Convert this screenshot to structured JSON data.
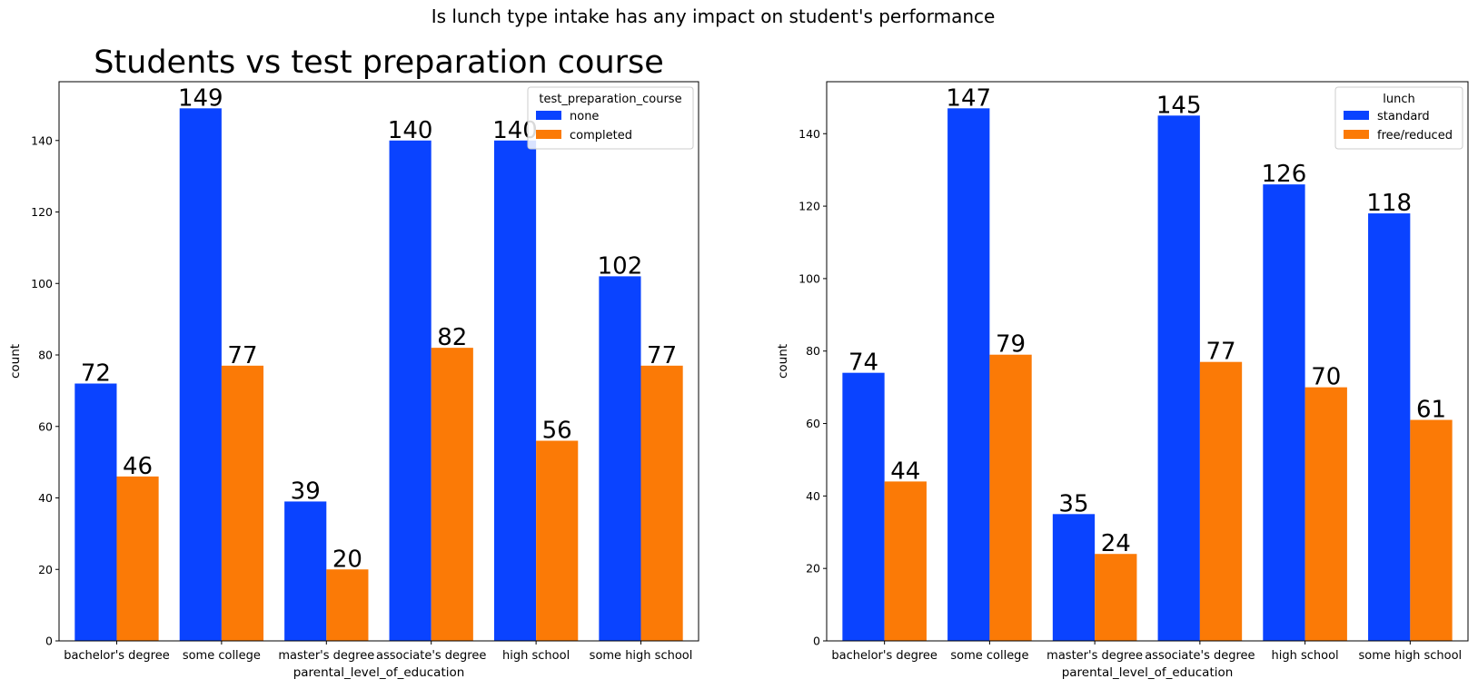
{
  "suptitle": "Is lunch type intake has any impact on student's performance",
  "colors": {
    "blue": "#0a43ff",
    "orange": "#fb7a06"
  },
  "chart_data": [
    {
      "type": "bar",
      "title": "Students vs test preparation course",
      "xlabel": "parental_level_of_education",
      "ylabel": "count",
      "categories": [
        "bachelor's degree",
        "some college",
        "master's degree",
        "associate's degree",
        "high school",
        "some high school"
      ],
      "ylim": [
        0,
        156.45
      ],
      "yticks": [
        0,
        20,
        40,
        60,
        80,
        100,
        120,
        140
      ],
      "legend": {
        "title": "test_preparation_course",
        "placement": "top-right"
      },
      "series": [
        {
          "name": "none",
          "color": "#0a43ff",
          "values": [
            72,
            149,
            39,
            140,
            140,
            102
          ]
        },
        {
          "name": "completed",
          "color": "#fb7a06",
          "values": [
            46,
            77,
            20,
            82,
            56,
            77
          ]
        }
      ]
    },
    {
      "type": "bar",
      "title": "",
      "xlabel": "parental_level_of_education",
      "ylabel": "count",
      "categories": [
        "bachelor's degree",
        "some college",
        "master's degree",
        "associate's degree",
        "high school",
        "some high school"
      ],
      "ylim": [
        0,
        154.35
      ],
      "yticks": [
        0,
        20,
        40,
        60,
        80,
        100,
        120,
        140
      ],
      "legend": {
        "title": "lunch",
        "placement": "top-right"
      },
      "series": [
        {
          "name": "standard",
          "color": "#0a43ff",
          "values": [
            74,
            147,
            35,
            145,
            126,
            118
          ]
        },
        {
          "name": "free/reduced",
          "color": "#fb7a06",
          "values": [
            44,
            79,
            24,
            77,
            70,
            61
          ]
        }
      ]
    }
  ]
}
